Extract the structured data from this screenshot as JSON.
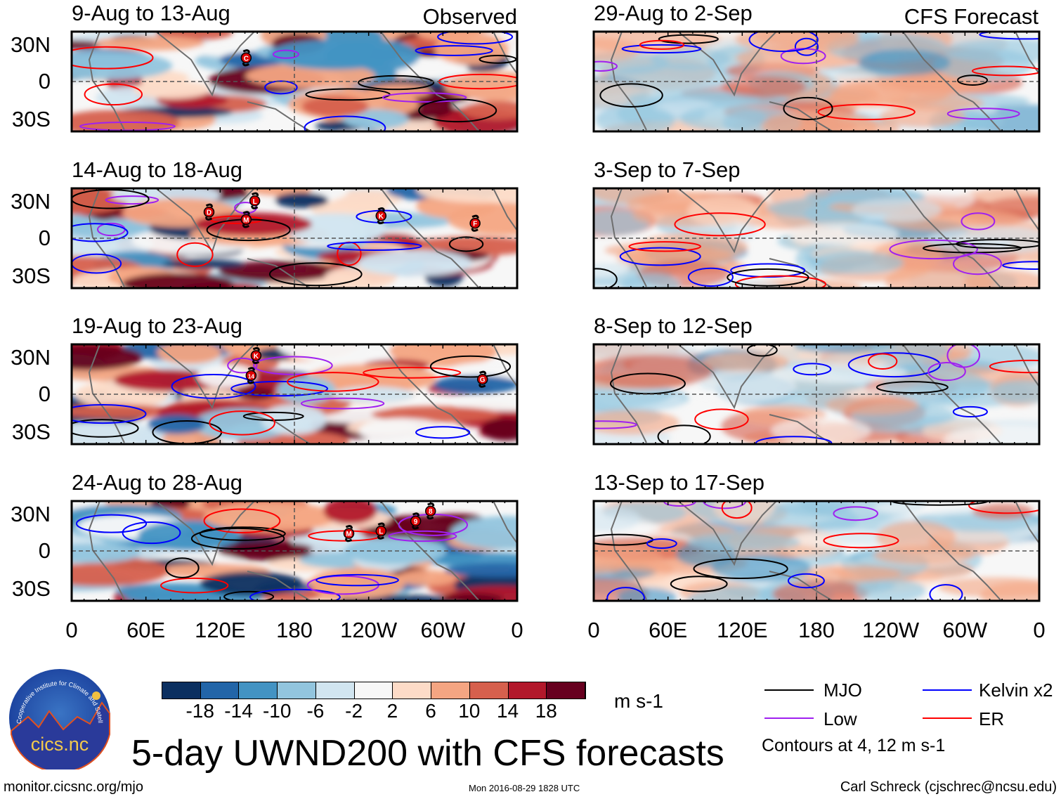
{
  "columns": [
    {
      "header": "Observed",
      "panels": [
        {
          "title": "9-Aug to 13-Aug",
          "storms": [
            {
              "label": "C",
              "lon": 141,
              "lat": 19
            }
          ]
        },
        {
          "title": "14-Aug to 18-Aug",
          "storms": [
            {
              "label": "D",
              "lon": 111,
              "lat": 21
            },
            {
              "label": "L",
              "lon": 148,
              "lat": 30
            },
            {
              "label": "M",
              "lon": 141,
              "lat": 15
            },
            {
              "label": "K",
              "lon": 250,
              "lat": 18
            },
            {
              "label": "F",
              "lon": 326,
              "lat": 12
            }
          ]
        },
        {
          "title": "19-Aug to 23-Aug",
          "storms": [
            {
              "label": "K",
              "lon": 149,
              "lat": 31
            },
            {
              "label": "14",
              "lon": 145,
              "lat": 15
            },
            {
              "label": "G",
              "lon": 332,
              "lat": 12
            }
          ]
        },
        {
          "title": "24-Aug to 28-Aug",
          "storms": [
            {
              "label": "M",
              "lon": 224,
              "lat": 14
            },
            {
              "label": "L",
              "lon": 250,
              "lat": 16
            },
            {
              "label": "9",
              "lon": 278,
              "lat": 24
            },
            {
              "label": "8",
              "lon": 290,
              "lat": 32
            }
          ]
        }
      ]
    },
    {
      "header": "CFS Forecast",
      "panels": [
        {
          "title": "29-Aug to 2-Sep",
          "storms": []
        },
        {
          "title": "3-Sep to 7-Sep",
          "storms": []
        },
        {
          "title": "8-Sep to 12-Sep",
          "storms": []
        },
        {
          "title": "13-Sep to 17-Sep",
          "storms": []
        }
      ]
    }
  ],
  "lat_labels": [
    "30N",
    "0",
    "30S"
  ],
  "lon_labels": [
    "0",
    "60E",
    "120E",
    "180",
    "120W",
    "60W",
    "0"
  ],
  "colorbar": {
    "colors": [
      "#0b2f60",
      "#2265a8",
      "#4393c3",
      "#92c5de",
      "#d1e5f0",
      "#f7f7f7",
      "#fddbc7",
      "#f4a582",
      "#d6604d",
      "#b2182b",
      "#67001f"
    ],
    "labels": [
      "-18",
      "-14",
      "-10",
      "-6",
      "-2",
      "2",
      "6",
      "10",
      "14",
      "18"
    ],
    "units": "m s-1"
  },
  "legend": {
    "items": [
      {
        "label": "MJO",
        "color": "#000000"
      },
      {
        "label": "Kelvin x2",
        "color": "#0000ff"
      },
      {
        "label": "Low",
        "color": "#a020f0"
      },
      {
        "label": "ER",
        "color": "#ff0000"
      }
    ],
    "note": "Contours at 4, 12 m s-1"
  },
  "title": "5-day UWND200 with CFS forecasts",
  "logo": {
    "text": "cics.nc",
    "ring": "Cooperative Institute for Climate and Satellites"
  },
  "footer": {
    "left": "monitor.cicsnc.org/mjo",
    "center": "Mon 2016-08-29 1828 UTC",
    "right": "Carl Schreck (cjschrec@ncsu.edu)"
  }
}
